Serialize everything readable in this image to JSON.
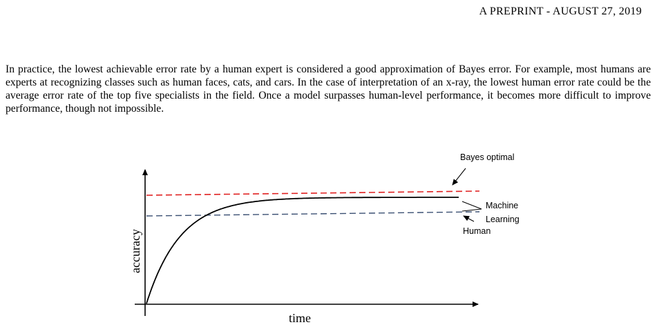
{
  "header": {
    "text": "A PREPRINT - AUGUST 27, 2019"
  },
  "body": {
    "paragraph": "In practice, the lowest achievable error rate by a human expert is considered a good approximation of Bayes error. For example, most humans are experts at recognizing classes such as human faces, cats, and cars. In the case of interpretation of an x-ray, the lowest human error rate could be the average error rate of the top five specialists in the field. Once a model surpasses human-level performance, it becomes more difficult to improve performance, though not impossible."
  },
  "figure": {
    "xlabel": "time",
    "ylabel": "accuracy",
    "labels": {
      "bayes": "Bayes optimal",
      "machine_line1": "Machine",
      "machine_line2": "Learning",
      "human": "Human"
    },
    "colors": {
      "bayes": "#e02020",
      "human": "#3a4f72",
      "machine": "#000000"
    }
  }
}
